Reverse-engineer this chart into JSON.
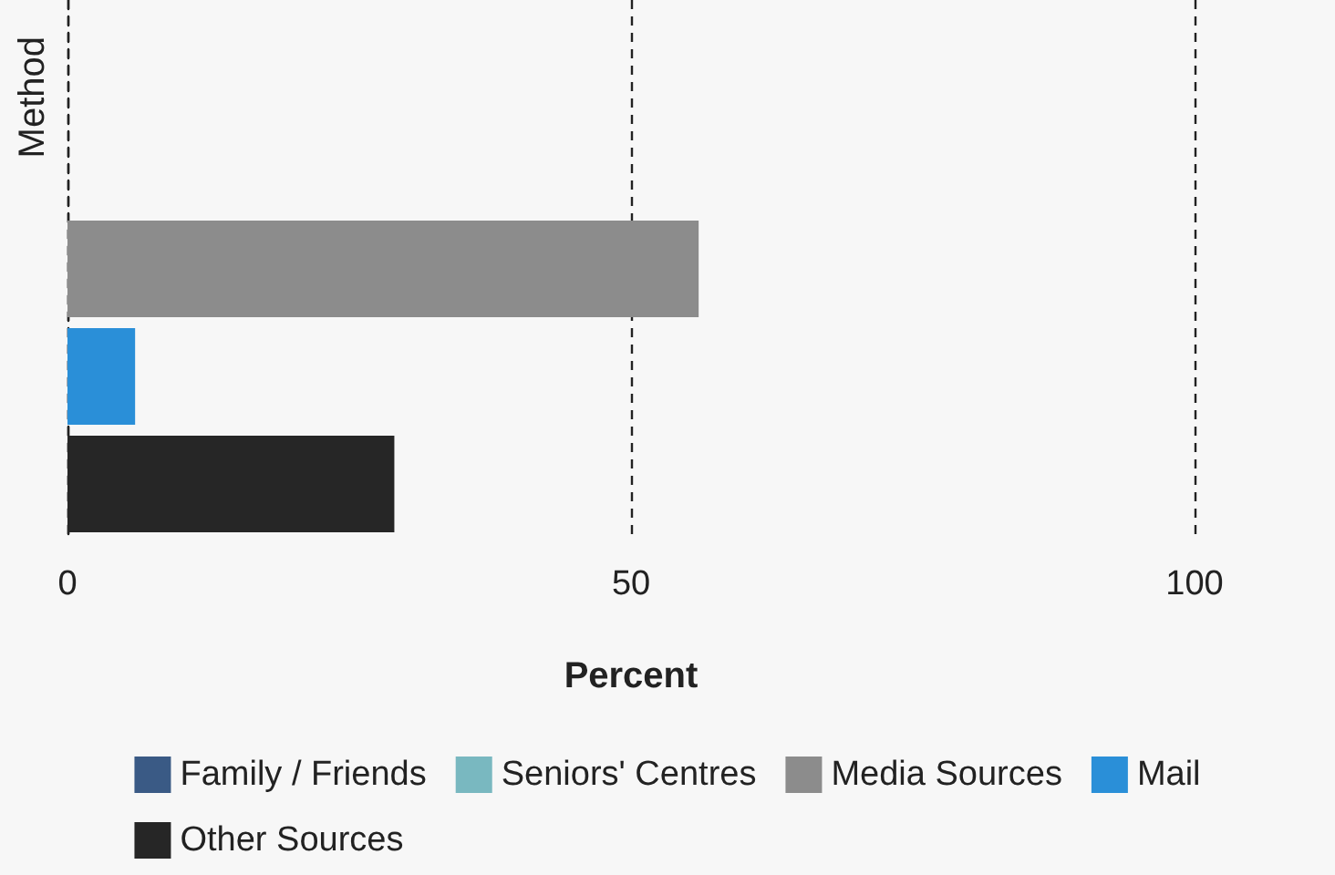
{
  "chart_data": {
    "type": "bar",
    "orientation": "horizontal",
    "xlabel": "Percent",
    "ylabel": "Method",
    "categories": [
      null,
      null,
      null,
      null,
      null
    ],
    "series": [
      {
        "name": "Family / Friends",
        "color": "#3a5a85",
        "values": [
          null,
          null,
          null,
          null,
          null
        ]
      },
      {
        "name": "Seniors' Centres",
        "color": "#79b8c0",
        "values": [
          null,
          null,
          null,
          null,
          null
        ]
      },
      {
        "name": "Media Sources",
        "color": "#8c8c8c",
        "values": [
          null,
          null,
          56,
          null,
          null
        ]
      },
      {
        "name": "Mail",
        "color": "#2a8fd8",
        "values": [
          null,
          null,
          null,
          6,
          null
        ]
      },
      {
        "name": "Other Sources",
        "color": "#262626",
        "values": [
          null,
          null,
          null,
          null,
          29
        ]
      }
    ],
    "xlim": [
      0,
      100
    ],
    "xticks": [
      0,
      50,
      100
    ],
    "grid": "x",
    "legend": "bottom",
    "tick_labels": "x"
  }
}
